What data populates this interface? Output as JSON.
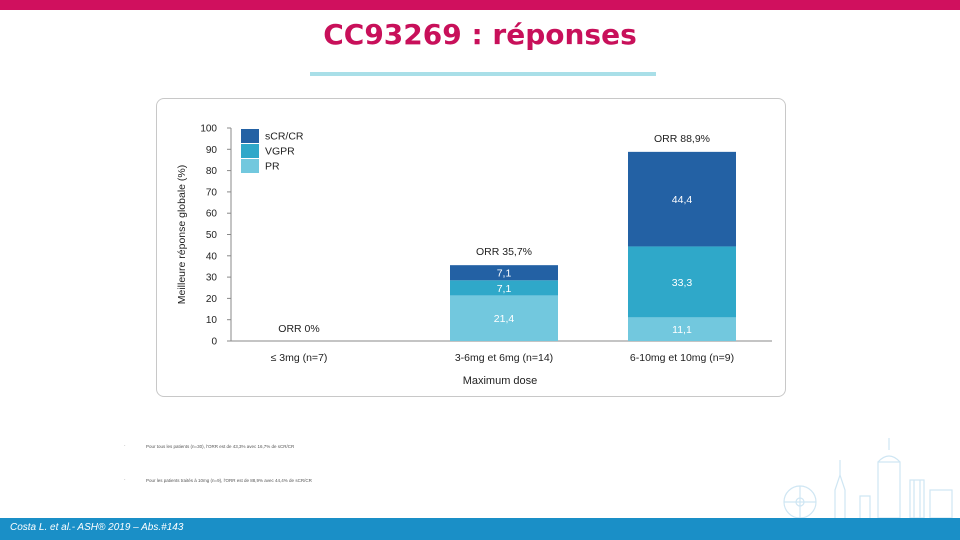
{
  "slide": {
    "title": "CC93269 : réponses",
    "citation": "Costa L. et al.- ASH® 2019 – Abs.#143",
    "footnotes": [
      "Pour tous les patients (n=30), l'ORR est de 43,3% avec 16,7% de sCR/CR",
      "Pour les patients traités à 10mg (n=9), l'ORR est de 88,9% avec 44,4% de sCR/CR"
    ]
  },
  "colors": {
    "accent": "#c8105a",
    "top_bar": "#d0105e",
    "bottom_bar": "#1a8fc7",
    "sCR_CR": "#2361a4",
    "VGPR": "#2fa8c9",
    "PR": "#72c8de"
  },
  "chart_data": {
    "type": "bar",
    "stacked": true,
    "categories": [
      "≤ 3mg (n=7)",
      "3-6mg et 6mg (n=14)",
      "6-10mg et 10mg (n=9)"
    ],
    "series": [
      {
        "name": "PR",
        "values": [
          0,
          21.4,
          11.1
        ],
        "labels": [
          "",
          "21,4",
          "11,1"
        ],
        "color": "#72c8de"
      },
      {
        "name": "VGPR",
        "values": [
          0,
          7.1,
          33.3
        ],
        "labels": [
          "",
          "7,1",
          "33,3"
        ],
        "color": "#2fa8c9"
      },
      {
        "name": "sCR/CR",
        "values": [
          0,
          7.1,
          44.4
        ],
        "labels": [
          "",
          "7,1",
          "44,4"
        ],
        "color": "#2361a4"
      }
    ],
    "annotations": [
      "ORR 0%",
      "ORR 35,7%",
      "ORR 88,9%"
    ],
    "legend_order": [
      "sCR/CR",
      "VGPR",
      "PR"
    ],
    "legend_position": "top-left",
    "xlabel": "Maximum dose",
    "ylabel": "Meilleure réponse globale (%)",
    "ylim": [
      0,
      100
    ],
    "yticks": [
      "0",
      "10",
      "20",
      "30",
      "40",
      "50",
      "60",
      "70",
      "80",
      "90",
      "100"
    ],
    "grid": false
  }
}
